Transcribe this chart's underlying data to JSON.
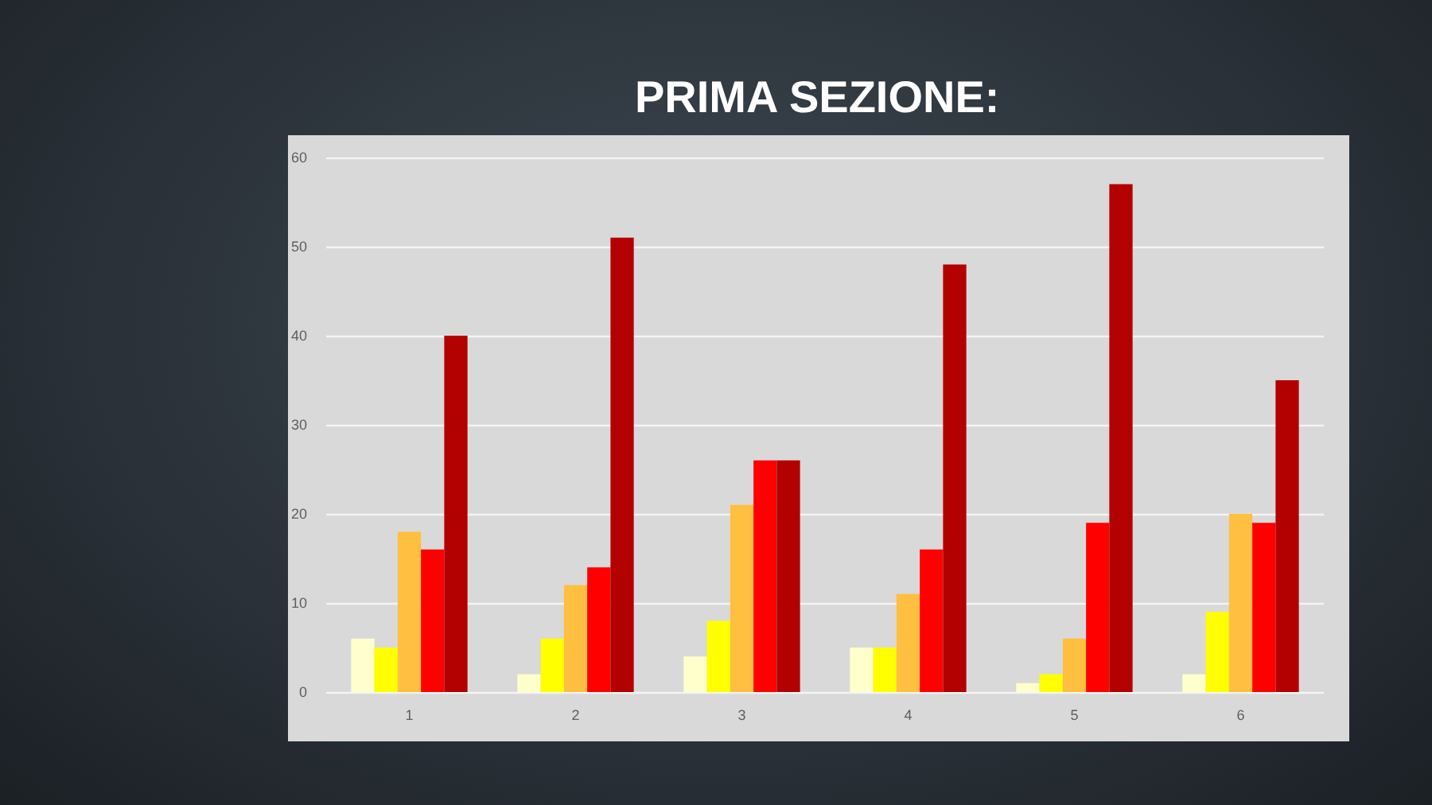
{
  "chart_data": {
    "type": "bar",
    "title": "PRIMA SEZIONE:",
    "categories": [
      "1",
      "2",
      "3",
      "4",
      "5",
      "6"
    ],
    "series": [
      {
        "color": "#ffffcc",
        "values": [
          6,
          2,
          4,
          5,
          1,
          2
        ]
      },
      {
        "color": "#ffff00",
        "values": [
          5,
          6,
          8,
          5,
          2,
          9
        ]
      },
      {
        "color": "#ffbf40",
        "values": [
          18,
          12,
          21,
          11,
          6,
          20
        ]
      },
      {
        "color": "#ff0000",
        "values": [
          16,
          14,
          26,
          16,
          19,
          19
        ]
      },
      {
        "color": "#b30000",
        "values": [
          40,
          51,
          26,
          48,
          57,
          35
        ]
      }
    ],
    "ylim": [
      0,
      60
    ],
    "yticks": [
      0,
      10,
      20,
      30,
      40,
      50,
      60
    ],
    "grid": "y"
  }
}
